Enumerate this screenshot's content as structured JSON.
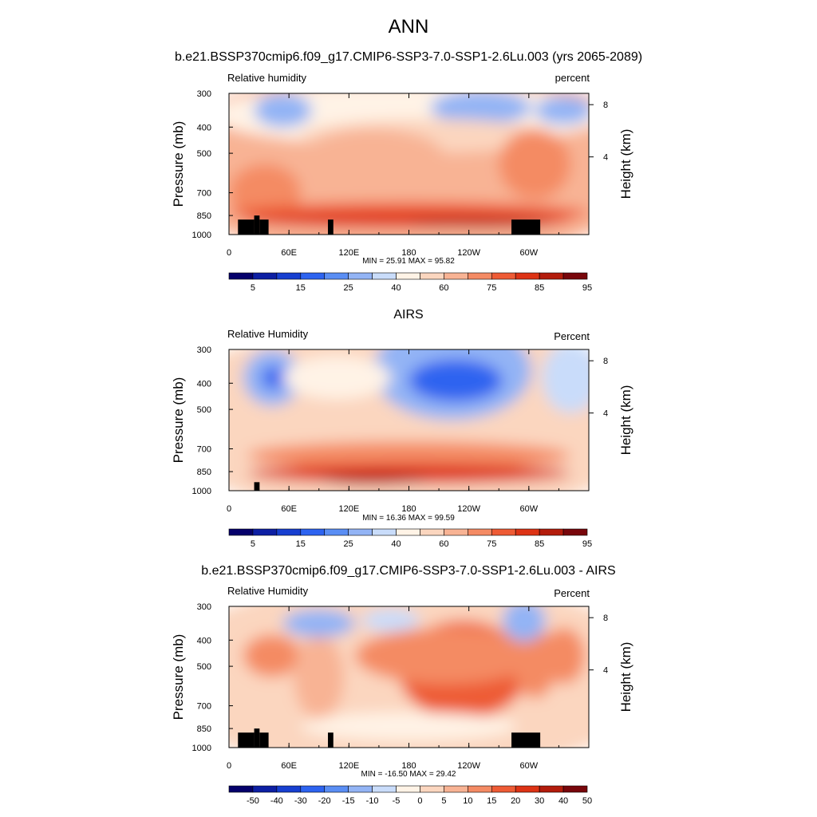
{
  "figure": {
    "title": "ANN"
  },
  "colors": {
    "abs_scale": [
      "#05006b",
      "#0d1fa3",
      "#173fd0",
      "#2d63f0",
      "#5a8ef4",
      "#93b4f5",
      "#c9dcfa",
      "#fff3e6",
      "#fbd6bf",
      "#f8b394",
      "#f48b64",
      "#ee5b35",
      "#dd3315",
      "#b31c0c",
      "#78060b"
    ],
    "diff_scale": [
      "#05006b",
      "#0d1fa3",
      "#173fd0",
      "#2d63f0",
      "#5a8ef4",
      "#93b4f5",
      "#c9dcfa",
      "#fff3e6",
      "#fbd6bf",
      "#f8b394",
      "#f48b64",
      "#ee5b35",
      "#dd3315",
      "#b31c0c",
      "#78060b"
    ],
    "topography": "#000000"
  },
  "chart_data": [
    {
      "type": "heatmap",
      "title": "b.e21.BSSP370cmip6.f09_g17.CMIP6-SSP3-7.0-SSP1-2.6Lu.003 (yrs 2065-2089)",
      "field_label": "Relative humidity",
      "units": "percent",
      "ylabel": "Pressure (mb)",
      "ylabel_right": "Height (km)",
      "y_ticks": [
        "300",
        "400",
        "500",
        "700",
        "850",
        "1000"
      ],
      "y_right_ticks": [
        "8",
        "4"
      ],
      "x_ticks": [
        "0",
        "60E",
        "120E",
        "180",
        "120W",
        "60W"
      ],
      "stats": "MIN =  25.91  MAX =  95.82",
      "colorbar_labels": [
        "5",
        "15",
        "25",
        "40",
        "60",
        "75",
        "85",
        "95"
      ],
      "min": 25.91,
      "max": 95.82
    },
    {
      "type": "heatmap",
      "title": "AIRS",
      "field_label": "Relative Humidity",
      "units": "Percent",
      "ylabel": "Pressure (mb)",
      "ylabel_right": "Height (km)",
      "y_ticks": [
        "300",
        "400",
        "500",
        "700",
        "850",
        "1000"
      ],
      "y_right_ticks": [
        "8",
        "4"
      ],
      "x_ticks": [
        "0",
        "60E",
        "120E",
        "180",
        "120W",
        "60W"
      ],
      "stats": "MIN =  16.36  MAX =  99.59",
      "colorbar_labels": [
        "5",
        "15",
        "25",
        "40",
        "60",
        "75",
        "85",
        "95"
      ],
      "min": 16.36,
      "max": 99.59
    },
    {
      "type": "heatmap",
      "title": "b.e21.BSSP370cmip6.f09_g17.CMIP6-SSP3-7.0-SSP1-2.6Lu.003 - AIRS",
      "field_label": "Relative Humidity",
      "units": "Percent",
      "ylabel": "Pressure (mb)",
      "ylabel_right": "Height (km)",
      "y_ticks": [
        "300",
        "400",
        "500",
        "700",
        "850",
        "1000"
      ],
      "y_right_ticks": [
        "8",
        "4"
      ],
      "x_ticks": [
        "0",
        "60E",
        "120E",
        "180",
        "120W",
        "60W"
      ],
      "stats": "MIN = -16.50  MAX =  29.42",
      "colorbar_labels": [
        "-50",
        "-40",
        "-30",
        "-20",
        "-15",
        "-10",
        "-5",
        "0",
        "5",
        "10",
        "15",
        "20",
        "30",
        "40",
        "50"
      ],
      "min": -16.5,
      "max": 29.42
    }
  ]
}
